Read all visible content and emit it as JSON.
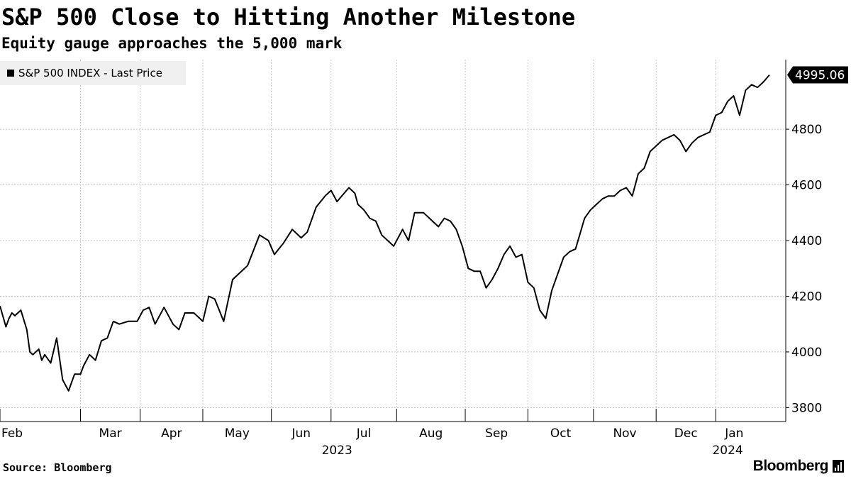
{
  "header": {
    "title": "S&P 500 Close to Hitting Another Milestone",
    "subtitle": "Equity gauge approaches the 5,000 mark"
  },
  "footer": {
    "source": "Source: Bloomberg",
    "brand": "Bloomberg",
    "brand_icon": "bloomberg-bars-icon"
  },
  "colors": {
    "line": "#000000",
    "grid": "#c8c8c8",
    "legend_bg": "#f0f0f0",
    "text": "#000000"
  },
  "chart_data": {
    "type": "line",
    "title": "S&P 500 Close to Hitting Another Milestone",
    "subtitle": "Equity gauge approaches the 5,000 mark",
    "legend": "S&P 500 INDEX - Last Price",
    "legend_placement": "top-left",
    "last_value_label": "4995.06",
    "x_unit": "trading day index (day 0 = 2023-02-01)",
    "xlim": [
      0,
      258
    ],
    "ylim": [
      3750,
      5050
    ],
    "grid": true,
    "y_axis_side": "right",
    "y_ticks": [
      3800,
      4000,
      4200,
      4400,
      4600,
      4800
    ],
    "x_ticks": [
      {
        "label": "Feb",
        "pos": 0
      },
      {
        "label": "Mar",
        "pos": 27
      },
      {
        "label": "Apr",
        "pos": 47
      },
      {
        "label": "May",
        "pos": 68
      },
      {
        "label": "Jun",
        "pos": 91
      },
      {
        "label": "Jul",
        "pos": 111
      },
      {
        "label": "Aug",
        "pos": 133
      },
      {
        "label": "Sep",
        "pos": 156
      },
      {
        "label": "Oct",
        "pos": 177
      },
      {
        "label": "Nov",
        "pos": 199
      },
      {
        "label": "Dec",
        "pos": 220
      },
      {
        "label": "Jan",
        "pos": 240
      }
    ],
    "year_labels": [
      {
        "label": "2023",
        "pos": 113
      },
      {
        "label": "2024",
        "pos": 244
      }
    ],
    "series": [
      {
        "name": "S&P 500 INDEX - Last Price",
        "x": [
          0,
          2,
          3,
          4,
          5,
          7,
          9,
          10,
          11,
          13,
          14,
          15,
          17,
          19,
          21,
          23,
          25,
          27,
          28,
          30,
          32,
          34,
          36,
          38,
          40,
          43,
          46,
          48,
          50,
          52,
          55,
          58,
          60,
          62,
          65,
          68,
          70,
          72,
          75,
          78,
          80,
          83,
          87,
          90,
          92,
          95,
          98,
          101,
          103,
          106,
          109,
          111,
          113,
          117,
          119,
          120,
          122,
          124,
          126,
          128,
          130,
          132,
          135,
          137,
          139,
          142,
          144,
          146,
          147,
          149,
          151,
          153,
          155,
          157,
          159,
          161,
          163,
          165,
          167,
          169,
          171,
          173,
          175,
          177,
          179,
          181,
          183,
          185,
          187,
          189,
          191,
          193,
          196,
          198,
          200,
          202,
          204,
          206,
          208,
          210,
          212,
          214,
          216,
          218,
          220,
          222,
          224,
          226,
          228,
          230,
          232,
          234,
          236,
          238,
          240,
          242,
          244,
          246,
          248,
          250,
          252,
          254,
          256,
          258
        ],
        "values": [
          4165,
          4090,
          4120,
          4140,
          4130,
          4150,
          4080,
          4000,
          3990,
          4010,
          3970,
          3990,
          3960,
          4050,
          3900,
          3860,
          3920,
          3920,
          3950,
          3990,
          3970,
          4040,
          4050,
          4110,
          4100,
          4110,
          4110,
          4150,
          4160,
          4100,
          4160,
          4100,
          4080,
          4140,
          4140,
          4110,
          4200,
          4190,
          4110,
          4260,
          4280,
          4310,
          4420,
          4400,
          4350,
          4390,
          4440,
          4410,
          4430,
          4520,
          4560,
          4580,
          4540,
          4590,
          4570,
          4530,
          4510,
          4480,
          4470,
          4420,
          4400,
          4380,
          4440,
          4400,
          4500,
          4500,
          4480,
          4460,
          4450,
          4480,
          4470,
          4440,
          4380,
          4300,
          4290,
          4290,
          4230,
          4260,
          4300,
          4350,
          4380,
          4340,
          4350,
          4250,
          4230,
          4150,
          4120,
          4220,
          4280,
          4340,
          4360,
          4370,
          4480,
          4510,
          4530,
          4550,
          4560,
          4560,
          4580,
          4590,
          4560,
          4640,
          4660,
          4720,
          4740,
          4760,
          4770,
          4780,
          4760,
          4720,
          4750,
          4770,
          4780,
          4790,
          4850,
          4860,
          4900,
          4920,
          4850,
          4940,
          4960,
          4950,
          4970,
          4995.06
        ]
      }
    ]
  }
}
